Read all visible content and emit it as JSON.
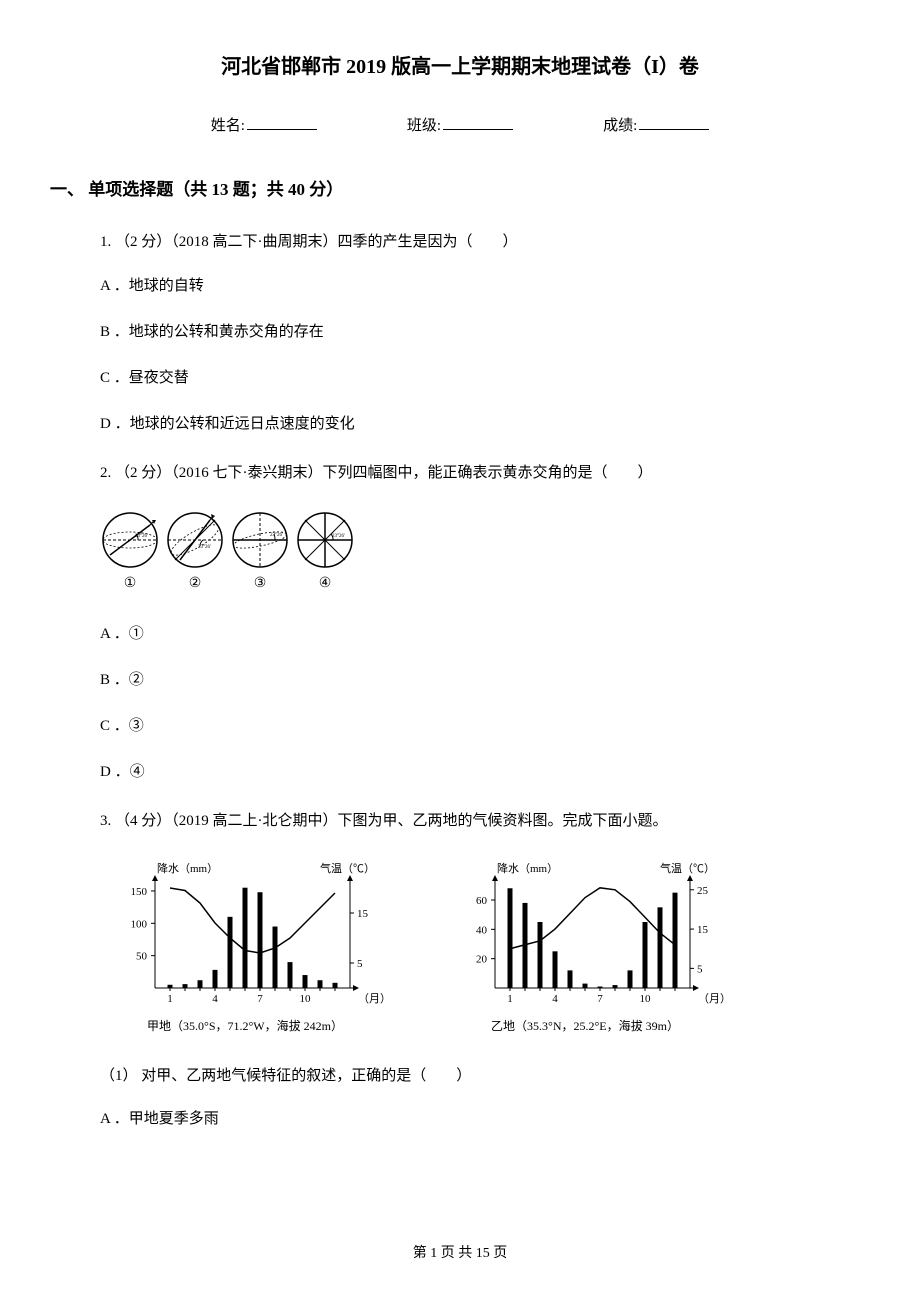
{
  "title": "河北省邯郸市 2019 版高一上学期期末地理试卷（I）卷",
  "info": {
    "name_label": "姓名:",
    "class_label": "班级:",
    "score_label": "成绩:"
  },
  "section1": {
    "heading": "一、 单项选择题（共 13 题；共 40 分）"
  },
  "q1": {
    "stem": "1.  （2 分）（2018 高二下·曲周期末）四季的产生是因为（　　）",
    "a": "A ．地球的自转",
    "b": "B ．地球的公转和黄赤交角的存在",
    "c": "C ．昼夜交替",
    "d": "D ．地球的公转和近远日点速度的变化"
  },
  "q2": {
    "stem": "2.  （2 分）（2016 七下·泰兴期末）下列四幅图中，能正确表示黄赤交角的是（　　）",
    "a": "A ．①",
    "b": "B ．②",
    "c": "C ．③",
    "d": "D ．④",
    "labels": [
      "①",
      "②",
      "③",
      "④"
    ]
  },
  "q3": {
    "stem": "3.  （4 分）（2019 高二上·北仑期中）下图为甲、乙两地的气候资料图。完成下面小题。",
    "chartA": {
      "precip_label": "降水（mm）",
      "temp_label": "气温（℃）",
      "x_label": "（月）",
      "caption": "甲地（35.0°S，71.2°W，海拔 242m）",
      "precip_yticks": [
        50,
        100,
        150
      ],
      "temp_yticks": [
        5,
        15
      ],
      "x_ticks": [
        1,
        4,
        7,
        10
      ],
      "months": [
        1,
        2,
        3,
        4,
        5,
        6,
        7,
        8,
        9,
        10,
        11,
        12
      ],
      "precip": [
        5,
        6,
        12,
        28,
        110,
        155,
        148,
        95,
        40,
        20,
        12,
        8
      ],
      "temp": [
        20,
        19.5,
        17,
        13,
        10,
        7.5,
        7,
        8,
        10,
        13,
        16,
        19
      ],
      "colors": {
        "bar": "#000000",
        "line": "#000000",
        "axis": "#000000",
        "text": "#000000"
      }
    },
    "chartB": {
      "precip_label": "降水（mm）",
      "temp_label": "气温（℃）",
      "x_label": "（月）",
      "caption": "乙地（35.3°N，25.2°E，海拔 39m）",
      "precip_yticks": [
        20,
        40,
        60
      ],
      "temp_yticks": [
        5,
        15,
        25
      ],
      "x_ticks": [
        1,
        4,
        7,
        10
      ],
      "months": [
        1,
        2,
        3,
        4,
        5,
        6,
        7,
        8,
        9,
        10,
        11,
        12
      ],
      "precip": [
        68,
        58,
        45,
        25,
        12,
        3,
        1,
        2,
        12,
        45,
        55,
        65
      ],
      "temp": [
        10,
        11,
        12,
        15,
        19,
        23,
        25.5,
        25,
        22,
        18,
        14,
        11
      ],
      "colors": {
        "bar": "#000000",
        "line": "#000000",
        "axis": "#000000",
        "text": "#000000"
      }
    },
    "sub1": "（1） 对甲、乙两地气候特征的叙述，正确的是（　　）",
    "a": "A ．甲地夏季多雨"
  },
  "footer": "第 1 页 共 15 页"
}
